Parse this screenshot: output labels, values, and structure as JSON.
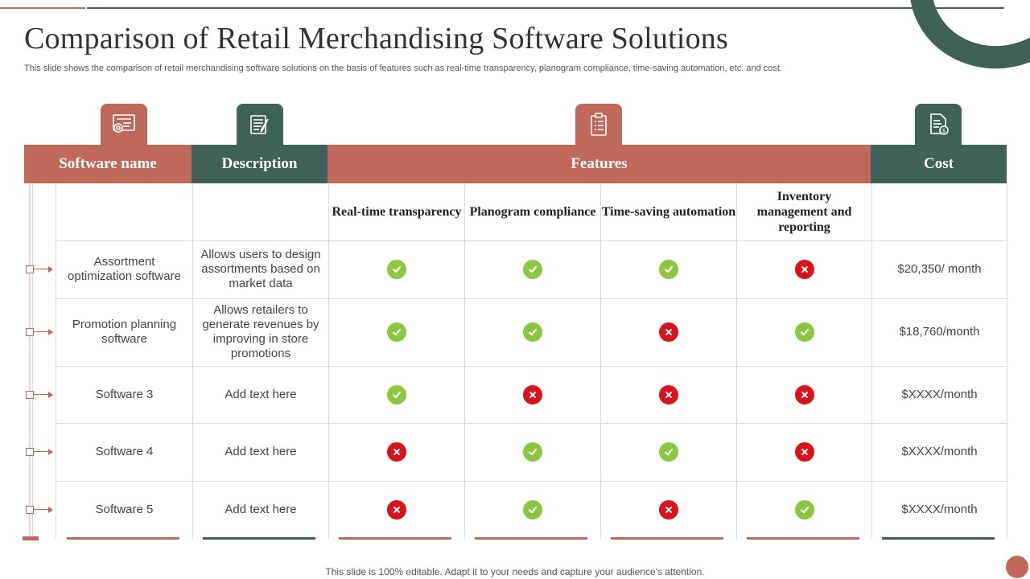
{
  "title": "Comparison of Retail Merchandising Software Solutions",
  "subtitle": "This slide shows the comparison of retail merchandising software solutions on the basis of features such as real-time transparency, planogram compliance, time-saving automation, etc. and cost.",
  "headers": {
    "software_name": "Software name",
    "description": "Description",
    "features": "Features",
    "cost": "Cost"
  },
  "features": [
    "Real-time transparency",
    "Planogram compliance",
    "Time-saving automation",
    "Inventory management and reporting"
  ],
  "rows": [
    {
      "name": "Assortment optimization software",
      "description": "Allows users to design assortments based on market data",
      "marks": [
        "check",
        "check",
        "check",
        "cross"
      ],
      "cost": "$20,350/ month"
    },
    {
      "name": "Promotion planning software",
      "description": "Allows retailers to generate revenues by improving in store promotions",
      "marks": [
        "check",
        "check",
        "cross",
        "check"
      ],
      "cost": "$18,760/month"
    },
    {
      "name": "Software 3",
      "description": "Add text here",
      "marks": [
        "check",
        "cross",
        "cross",
        "cross"
      ],
      "cost": "$XXXX/month"
    },
    {
      "name": "Software 4",
      "description": "Add text here",
      "marks": [
        "cross",
        "check",
        "check",
        "cross"
      ],
      "cost": "$XXXX/month"
    },
    {
      "name": "Software 5",
      "description": "Add text here",
      "marks": [
        "cross",
        "check",
        "cross",
        "check"
      ],
      "cost": "$XXXX/month"
    }
  ],
  "icons": [
    "settings-certificate-icon",
    "document-edit-icon",
    "clipboard-checklist-icon",
    "dollar-document-icon"
  ],
  "colors": {
    "accent_red": "#c0695b",
    "accent_green": "#3f6158",
    "check_green": "#8cc63f",
    "cross_red": "#e0101a"
  },
  "footer": "This slide is 100% editable. Adapt it to your needs and capture your audience's attention."
}
